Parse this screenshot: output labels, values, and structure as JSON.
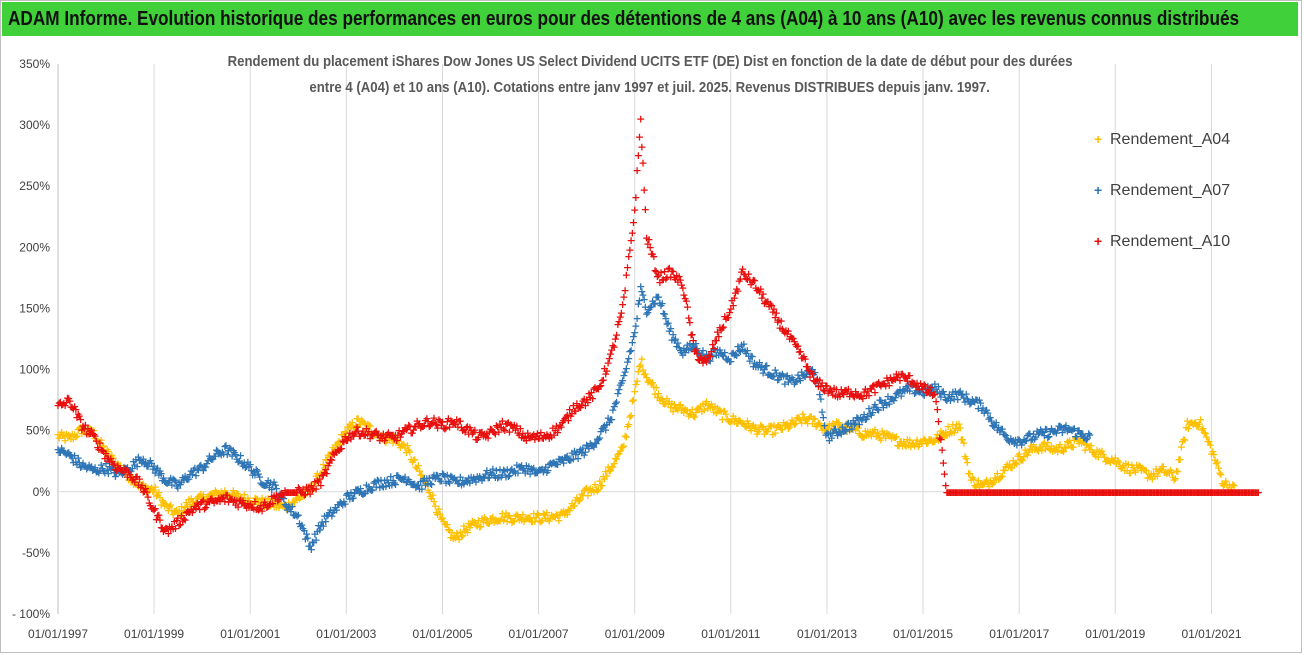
{
  "header": {
    "banner_title": "ADAM Informe. Evolution historique des performances en euros pour des détentions de 4 ans (A04) à 10 ans (A10) avec les revenus connus distribués"
  },
  "chart_data": {
    "type": "scatter",
    "title_line1": "Rendement du placement iShares Dow Jones US Select Dividend UCITS ETF (DE) Dist en fonction de la date de début pour des durées",
    "title_line2": "entre 4 (A04) et 10 ans (A10). Cotations entre janv 1997 et juil. 2025. Revenus DISTRIBUES depuis janv. 1997.",
    "xlabel": "",
    "ylabel": "",
    "xlim": [
      "1997-01-01",
      "2022-01-20"
    ],
    "ylim": [
      -100,
      350
    ],
    "yticks": [
      -100,
      -50,
      0,
      50,
      100,
      150,
      200,
      250,
      300,
      350
    ],
    "ytick_labels": [
      "- 100%",
      "-50%",
      "0%",
      "50%",
      "100%",
      "150%",
      "200%",
      "250%",
      "300%",
      "350%"
    ],
    "xticks": [
      "1997-01-01",
      "1999-01-01",
      "2001-01-01",
      "2003-01-01",
      "2005-01-01",
      "2007-01-01",
      "2009-01-01",
      "2011-01-01",
      "2013-01-01",
      "2015-01-01",
      "2017-01-01",
      "2019-01-01",
      "2021-01-01"
    ],
    "xtick_labels": [
      "01/01/1997",
      "01/01/1999",
      "01/01/2001",
      "01/01/2003",
      "01/01/2005",
      "01/01/2007",
      "01/01/2009",
      "01/01/2011",
      "01/01/2013",
      "01/01/2015",
      "01/01/2017",
      "01/01/2019",
      "01/01/2021"
    ],
    "grid": {
      "vertical": true,
      "horizontal": false
    },
    "legend_position": "right",
    "series": [
      {
        "name": "Rendement_A04",
        "color": "#ffc000",
        "points": [
          [
            "1997-01-01",
            46
          ],
          [
            "1997-04-01",
            44
          ],
          [
            "1997-07-01",
            51
          ],
          [
            "1997-10-01",
            48
          ],
          [
            "1998-01-01",
            33
          ],
          [
            "1998-04-01",
            22
          ],
          [
            "1998-07-01",
            13
          ],
          [
            "1998-10-01",
            4
          ],
          [
            "1999-01-01",
            2
          ],
          [
            "1999-04-01",
            -12
          ],
          [
            "1999-07-01",
            -18
          ],
          [
            "1999-10-01",
            -8
          ],
          [
            "2000-01-01",
            -5
          ],
          [
            "2000-04-01",
            -2
          ],
          [
            "2000-07-01",
            0
          ],
          [
            "2000-10-01",
            -4
          ],
          [
            "2001-01-01",
            -6
          ],
          [
            "2001-04-01",
            -8
          ],
          [
            "2001-07-01",
            -10
          ],
          [
            "2001-10-01",
            -12
          ],
          [
            "2002-01-01",
            -5
          ],
          [
            "2002-04-01",
            2
          ],
          [
            "2002-07-01",
            18
          ],
          [
            "2002-10-01",
            35
          ],
          [
            "2003-01-01",
            50
          ],
          [
            "2003-04-01",
            58
          ],
          [
            "2003-07-01",
            52
          ],
          [
            "2003-10-01",
            45
          ],
          [
            "2004-01-01",
            43
          ],
          [
            "2004-04-01",
            36
          ],
          [
            "2004-07-01",
            18
          ],
          [
            "2004-10-01",
            0
          ],
          [
            "2005-01-01",
            -25
          ],
          [
            "2005-04-01",
            -38
          ],
          [
            "2005-07-01",
            -30
          ],
          [
            "2005-10-01",
            -25
          ],
          [
            "2006-01-01",
            -22
          ],
          [
            "2006-04-01",
            -20
          ],
          [
            "2006-07-01",
            -21
          ],
          [
            "2006-10-01",
            -20
          ],
          [
            "2007-01-01",
            -21
          ],
          [
            "2007-04-01",
            -20
          ],
          [
            "2007-07-01",
            -19
          ],
          [
            "2007-10-01",
            -10
          ],
          [
            "2008-01-01",
            0
          ],
          [
            "2008-04-01",
            5
          ],
          [
            "2008-07-01",
            20
          ],
          [
            "2008-10-01",
            35
          ],
          [
            "2009-01-01",
            80
          ],
          [
            "2009-02-15",
            108
          ],
          [
            "2009-04-01",
            95
          ],
          [
            "2009-07-01",
            80
          ],
          [
            "2009-10-01",
            70
          ],
          [
            "2010-01-01",
            68
          ],
          [
            "2010-04-01",
            64
          ],
          [
            "2010-07-01",
            72
          ],
          [
            "2010-10-01",
            65
          ],
          [
            "2011-01-01",
            60
          ],
          [
            "2011-04-01",
            57
          ],
          [
            "2011-07-01",
            52
          ],
          [
            "2011-10-01",
            50
          ],
          [
            "2012-01-01",
            52
          ],
          [
            "2012-04-01",
            55
          ],
          [
            "2012-07-01",
            60
          ],
          [
            "2012-10-01",
            58
          ],
          [
            "2013-01-01",
            52
          ],
          [
            "2013-04-01",
            55
          ],
          [
            "2013-07-01",
            52
          ],
          [
            "2013-10-01",
            48
          ],
          [
            "2014-01-01",
            48
          ],
          [
            "2014-04-01",
            45
          ],
          [
            "2014-07-01",
            42
          ],
          [
            "2014-10-01",
            40
          ],
          [
            "2015-01-01",
            42
          ],
          [
            "2015-04-01",
            43
          ],
          [
            "2015-07-01",
            50
          ],
          [
            "2015-10-01",
            55
          ],
          [
            "2016-01-01",
            10
          ],
          [
            "2016-04-01",
            5
          ],
          [
            "2016-07-01",
            12
          ],
          [
            "2016-10-01",
            20
          ],
          [
            "2017-01-01",
            28
          ],
          [
            "2017-04-01",
            35
          ],
          [
            "2017-07-01",
            38
          ],
          [
            "2017-10-01",
            35
          ],
          [
            "2018-01-01",
            38
          ],
          [
            "2018-04-01",
            42
          ],
          [
            "2018-07-01",
            35
          ],
          [
            "2018-10-01",
            30
          ],
          [
            "2019-01-01",
            26
          ],
          [
            "2019-04-01",
            20
          ],
          [
            "2019-07-01",
            18
          ],
          [
            "2019-10-01",
            14
          ],
          [
            "2020-01-01",
            18
          ],
          [
            "2020-04-01",
            12
          ],
          [
            "2020-07-01",
            55
          ],
          [
            "2020-10-01",
            58
          ],
          [
            "2021-01-01",
            35
          ],
          [
            "2021-04-01",
            8
          ],
          [
            "2021-07-01",
            2
          ]
        ]
      },
      {
        "name": "Rendement_A07",
        "color": "#2e75b6",
        "points": [
          [
            "1997-01-01",
            35
          ],
          [
            "1997-04-01",
            30
          ],
          [
            "1997-07-01",
            22
          ],
          [
            "1997-10-01",
            18
          ],
          [
            "1998-01-01",
            20
          ],
          [
            "1998-04-01",
            15
          ],
          [
            "1998-07-01",
            20
          ],
          [
            "1998-10-01",
            28
          ],
          [
            "1999-01-01",
            20
          ],
          [
            "1999-04-01",
            10
          ],
          [
            "1999-07-01",
            5
          ],
          [
            "1999-10-01",
            15
          ],
          [
            "2000-01-01",
            20
          ],
          [
            "2000-04-01",
            30
          ],
          [
            "2000-07-01",
            35
          ],
          [
            "2000-10-01",
            28
          ],
          [
            "2001-01-01",
            20
          ],
          [
            "2001-04-01",
            10
          ],
          [
            "2001-07-01",
            5
          ],
          [
            "2001-10-01",
            -10
          ],
          [
            "2002-01-01",
            -20
          ],
          [
            "2002-04-01",
            -45
          ],
          [
            "2002-07-01",
            -25
          ],
          [
            "2002-10-01",
            -15
          ],
          [
            "2003-01-01",
            -5
          ],
          [
            "2003-04-01",
            0
          ],
          [
            "2003-07-01",
            5
          ],
          [
            "2003-10-01",
            8
          ],
          [
            "2004-01-01",
            10
          ],
          [
            "2004-04-01",
            12
          ],
          [
            "2004-07-01",
            5
          ],
          [
            "2004-10-01",
            10
          ],
          [
            "2005-01-01",
            12
          ],
          [
            "2005-04-01",
            8
          ],
          [
            "2005-07-01",
            10
          ],
          [
            "2005-10-01",
            12
          ],
          [
            "2006-01-01",
            15
          ],
          [
            "2006-04-01",
            15
          ],
          [
            "2006-07-01",
            18
          ],
          [
            "2006-10-01",
            20
          ],
          [
            "2007-01-01",
            15
          ],
          [
            "2007-04-01",
            22
          ],
          [
            "2007-07-01",
            25
          ],
          [
            "2007-10-01",
            30
          ],
          [
            "2008-01-01",
            35
          ],
          [
            "2008-04-01",
            45
          ],
          [
            "2008-07-01",
            60
          ],
          [
            "2008-10-01",
            90
          ],
          [
            "2009-01-01",
            130
          ],
          [
            "2009-02-15",
            165
          ],
          [
            "2009-04-01",
            150
          ],
          [
            "2009-07-01",
            160
          ],
          [
            "2009-10-01",
            130
          ],
          [
            "2010-01-01",
            115
          ],
          [
            "2010-04-01",
            120
          ],
          [
            "2010-07-01",
            110
          ],
          [
            "2010-10-01",
            115
          ],
          [
            "2011-01-01",
            110
          ],
          [
            "2011-04-01",
            120
          ],
          [
            "2011-07-01",
            105
          ],
          [
            "2011-10-01",
            100
          ],
          [
            "2012-01-01",
            95
          ],
          [
            "2012-04-01",
            90
          ],
          [
            "2012-07-01",
            95
          ],
          [
            "2012-10-01",
            100
          ],
          [
            "2013-01-01",
            45
          ],
          [
            "2013-04-01",
            50
          ],
          [
            "2013-07-01",
            55
          ],
          [
            "2013-10-01",
            60
          ],
          [
            "2014-01-01",
            70
          ],
          [
            "2014-04-01",
            75
          ],
          [
            "2014-07-01",
            80
          ],
          [
            "2014-10-01",
            85
          ],
          [
            "2015-01-01",
            82
          ],
          [
            "2015-04-01",
            85
          ],
          [
            "2015-07-01",
            78
          ],
          [
            "2015-10-01",
            80
          ],
          [
            "2016-01-01",
            75
          ],
          [
            "2016-04-01",
            70
          ],
          [
            "2016-07-01",
            55
          ],
          [
            "2016-10-01",
            45
          ],
          [
            "2017-01-01",
            42
          ],
          [
            "2017-04-01",
            45
          ],
          [
            "2017-07-01",
            48
          ],
          [
            "2017-10-01",
            50
          ],
          [
            "2018-01-01",
            52
          ],
          [
            "2018-04-01",
            48
          ],
          [
            "2018-07-01",
            45
          ]
        ]
      },
      {
        "name": "Rendement_A10",
        "color": "#e8100e",
        "points": [
          [
            "1997-01-01",
            70
          ],
          [
            "1997-04-01",
            75
          ],
          [
            "1997-07-01",
            55
          ],
          [
            "1997-10-01",
            45
          ],
          [
            "1998-01-01",
            30
          ],
          [
            "1998-04-01",
            20
          ],
          [
            "1998-07-01",
            15
          ],
          [
            "1998-10-01",
            5
          ],
          [
            "1999-01-01",
            -15
          ],
          [
            "1999-04-01",
            -32
          ],
          [
            "1999-07-01",
            -25
          ],
          [
            "1999-10-01",
            -15
          ],
          [
            "2000-01-01",
            -10
          ],
          [
            "2000-04-01",
            -8
          ],
          [
            "2000-07-01",
            -5
          ],
          [
            "2000-10-01",
            -8
          ],
          [
            "2001-01-01",
            -10
          ],
          [
            "2001-04-01",
            -12
          ],
          [
            "2001-07-01",
            -5
          ],
          [
            "2001-10-01",
            0
          ],
          [
            "2002-01-01",
            0
          ],
          [
            "2002-04-01",
            2
          ],
          [
            "2002-07-01",
            10
          ],
          [
            "2002-10-01",
            30
          ],
          [
            "2003-01-01",
            45
          ],
          [
            "2003-04-01",
            50
          ],
          [
            "2003-07-01",
            48
          ],
          [
            "2003-10-01",
            45
          ],
          [
            "2004-01-01",
            45
          ],
          [
            "2004-04-01",
            50
          ],
          [
            "2004-07-01",
            55
          ],
          [
            "2004-10-01",
            58
          ],
          [
            "2005-01-01",
            55
          ],
          [
            "2005-04-01",
            58
          ],
          [
            "2005-07-01",
            52
          ],
          [
            "2005-10-01",
            45
          ],
          [
            "2006-01-01",
            48
          ],
          [
            "2006-04-01",
            55
          ],
          [
            "2006-07-01",
            52
          ],
          [
            "2006-10-01",
            45
          ],
          [
            "2007-01-01",
            45
          ],
          [
            "2007-04-01",
            48
          ],
          [
            "2007-07-01",
            55
          ],
          [
            "2007-10-01",
            70
          ],
          [
            "2008-01-01",
            75
          ],
          [
            "2008-04-01",
            85
          ],
          [
            "2008-07-01",
            110
          ],
          [
            "2008-10-01",
            150
          ],
          [
            "2009-01-01",
            230
          ],
          [
            "2009-02-15",
            305
          ],
          [
            "2009-04-01",
            210
          ],
          [
            "2009-07-01",
            175
          ],
          [
            "2009-10-01",
            180
          ],
          [
            "2010-01-01",
            170
          ],
          [
            "2010-04-01",
            115
          ],
          [
            "2010-07-01",
            105
          ],
          [
            "2010-10-01",
            130
          ],
          [
            "2011-01-01",
            150
          ],
          [
            "2011-04-01",
            180
          ],
          [
            "2011-07-01",
            170
          ],
          [
            "2011-10-01",
            155
          ],
          [
            "2012-01-01",
            140
          ],
          [
            "2012-04-01",
            125
          ],
          [
            "2012-07-01",
            110
          ],
          [
            "2012-10-01",
            90
          ],
          [
            "2013-01-01",
            85
          ],
          [
            "2013-04-01",
            80
          ],
          [
            "2013-07-01",
            82
          ],
          [
            "2013-10-01",
            80
          ],
          [
            "2014-01-01",
            85
          ],
          [
            "2014-04-01",
            90
          ],
          [
            "2014-07-01",
            95
          ],
          [
            "2014-10-01",
            92
          ],
          [
            "2015-01-01",
            85
          ],
          [
            "2015-04-01",
            80
          ],
          [
            "2015-07-01",
            0
          ],
          [
            "2016-01-01",
            0
          ],
          [
            "2017-01-01",
            0
          ],
          [
            "2018-01-01",
            0
          ],
          [
            "2019-01-01",
            0
          ],
          [
            "2020-01-01",
            0
          ],
          [
            "2021-01-01",
            0
          ],
          [
            "2022-01-01",
            0
          ]
        ]
      }
    ]
  }
}
